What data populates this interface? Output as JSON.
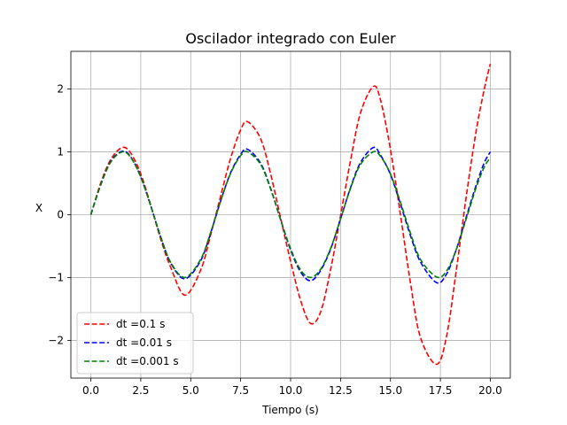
{
  "chart_data": {
    "type": "line",
    "title": "Oscilador integrado con Euler",
    "xlabel": "Tiempo (s)",
    "ylabel": "X",
    "xlim": [
      -1.0,
      21.0
    ],
    "ylim": [
      -2.6,
      2.6
    ],
    "xticks": [
      0.0,
      2.5,
      5.0,
      7.5,
      10.0,
      12.5,
      15.0,
      17.5,
      20.0
    ],
    "xtick_labels": [
      "0.0",
      "2.5",
      "5.0",
      "7.5",
      "10.0",
      "12.5",
      "15.0",
      "17.5",
      "20.0"
    ],
    "yticks": [
      -2,
      -1,
      0,
      1,
      2
    ],
    "ytick_labels": [
      "−2",
      "−1",
      "0",
      "1",
      "2"
    ],
    "grid": true,
    "legend_position": "lower-left",
    "series": [
      {
        "name": "dt =0.1 s",
        "color": "#ff0000",
        "dash": "dashed",
        "x": [
          0,
          0.5,
          1,
          1.57,
          2,
          2.5,
          3,
          3.5,
          4,
          4.71,
          5.5,
          6,
          6.5,
          7,
          7.5,
          7.85,
          8.5,
          9,
          9.5,
          10,
          10.5,
          11.0,
          11.5,
          12,
          12.5,
          13,
          13.5,
          14.14,
          14.5,
          15,
          15.5,
          16,
          16.5,
          17.3,
          17.8,
          18.3,
          18.8,
          19.3,
          19.7,
          20.0
        ],
        "y": [
          0,
          0.51,
          0.88,
          1.07,
          0.98,
          0.65,
          0.15,
          -0.39,
          -0.84,
          -1.28,
          -0.88,
          -0.32,
          0.3,
          0.9,
          1.35,
          1.48,
          1.21,
          0.65,
          -0.05,
          -0.74,
          -1.36,
          -1.73,
          -1.55,
          -0.88,
          -0.02,
          0.86,
          1.62,
          2.04,
          1.83,
          1.04,
          0.0,
          -1.08,
          -1.95,
          -2.38,
          -1.95,
          -0.88,
          0.3,
          1.35,
          2.0,
          2.4
        ]
      },
      {
        "name": "dt =0.01 s",
        "color": "#0000ff",
        "dash": "dashed",
        "x": [
          0,
          0.5,
          1,
          1.57,
          2,
          2.5,
          3,
          3.5,
          4,
          4.71,
          5.5,
          6,
          6.5,
          7,
          7.5,
          7.85,
          8.5,
          9,
          9.5,
          10,
          10.5,
          11.0,
          11.5,
          12,
          12.5,
          13,
          13.5,
          14.14,
          14.5,
          15,
          15.5,
          16,
          16.5,
          17.3,
          17.8,
          18.3,
          18.8,
          19.3,
          19.7,
          20.0
        ],
        "y": [
          0,
          0.48,
          0.85,
          1.01,
          0.92,
          0.6,
          0.14,
          -0.36,
          -0.77,
          -1.02,
          -0.73,
          -0.29,
          0.22,
          0.67,
          0.96,
          1.04,
          0.82,
          0.42,
          -0.08,
          -0.56,
          -0.91,
          -1.05,
          -0.89,
          -0.55,
          -0.07,
          0.43,
          0.83,
          1.07,
          0.95,
          0.64,
          0.17,
          -0.33,
          -0.75,
          -1.08,
          -0.95,
          -0.55,
          -0.03,
          0.48,
          0.83,
          1.0
        ]
      },
      {
        "name": "dt =0.001 s",
        "color": "#008000",
        "dash": "dashed",
        "x": [
          0,
          0.5,
          1,
          1.57,
          2,
          2.5,
          3,
          3.5,
          4,
          4.71,
          5.5,
          6,
          6.5,
          7,
          7.5,
          7.85,
          8.5,
          9,
          9.5,
          10,
          10.5,
          11.0,
          11.5,
          12,
          12.5,
          13,
          13.5,
          14.14,
          14.5,
          15,
          15.5,
          16,
          16.5,
          17.3,
          17.8,
          18.3,
          18.8,
          19.3,
          19.7,
          20.0
        ],
        "y": [
          0,
          0.48,
          0.84,
          1.0,
          0.91,
          0.6,
          0.14,
          -0.35,
          -0.76,
          -1.0,
          -0.71,
          -0.28,
          0.22,
          0.66,
          0.94,
          1.0,
          0.8,
          0.41,
          -0.08,
          -0.54,
          -0.88,
          -1.0,
          -0.87,
          -0.54,
          -0.07,
          0.42,
          0.8,
          1.0,
          0.93,
          0.65,
          0.2,
          -0.29,
          -0.71,
          -0.99,
          -0.9,
          -0.55,
          -0.06,
          0.44,
          0.76,
          0.91
        ]
      }
    ]
  }
}
